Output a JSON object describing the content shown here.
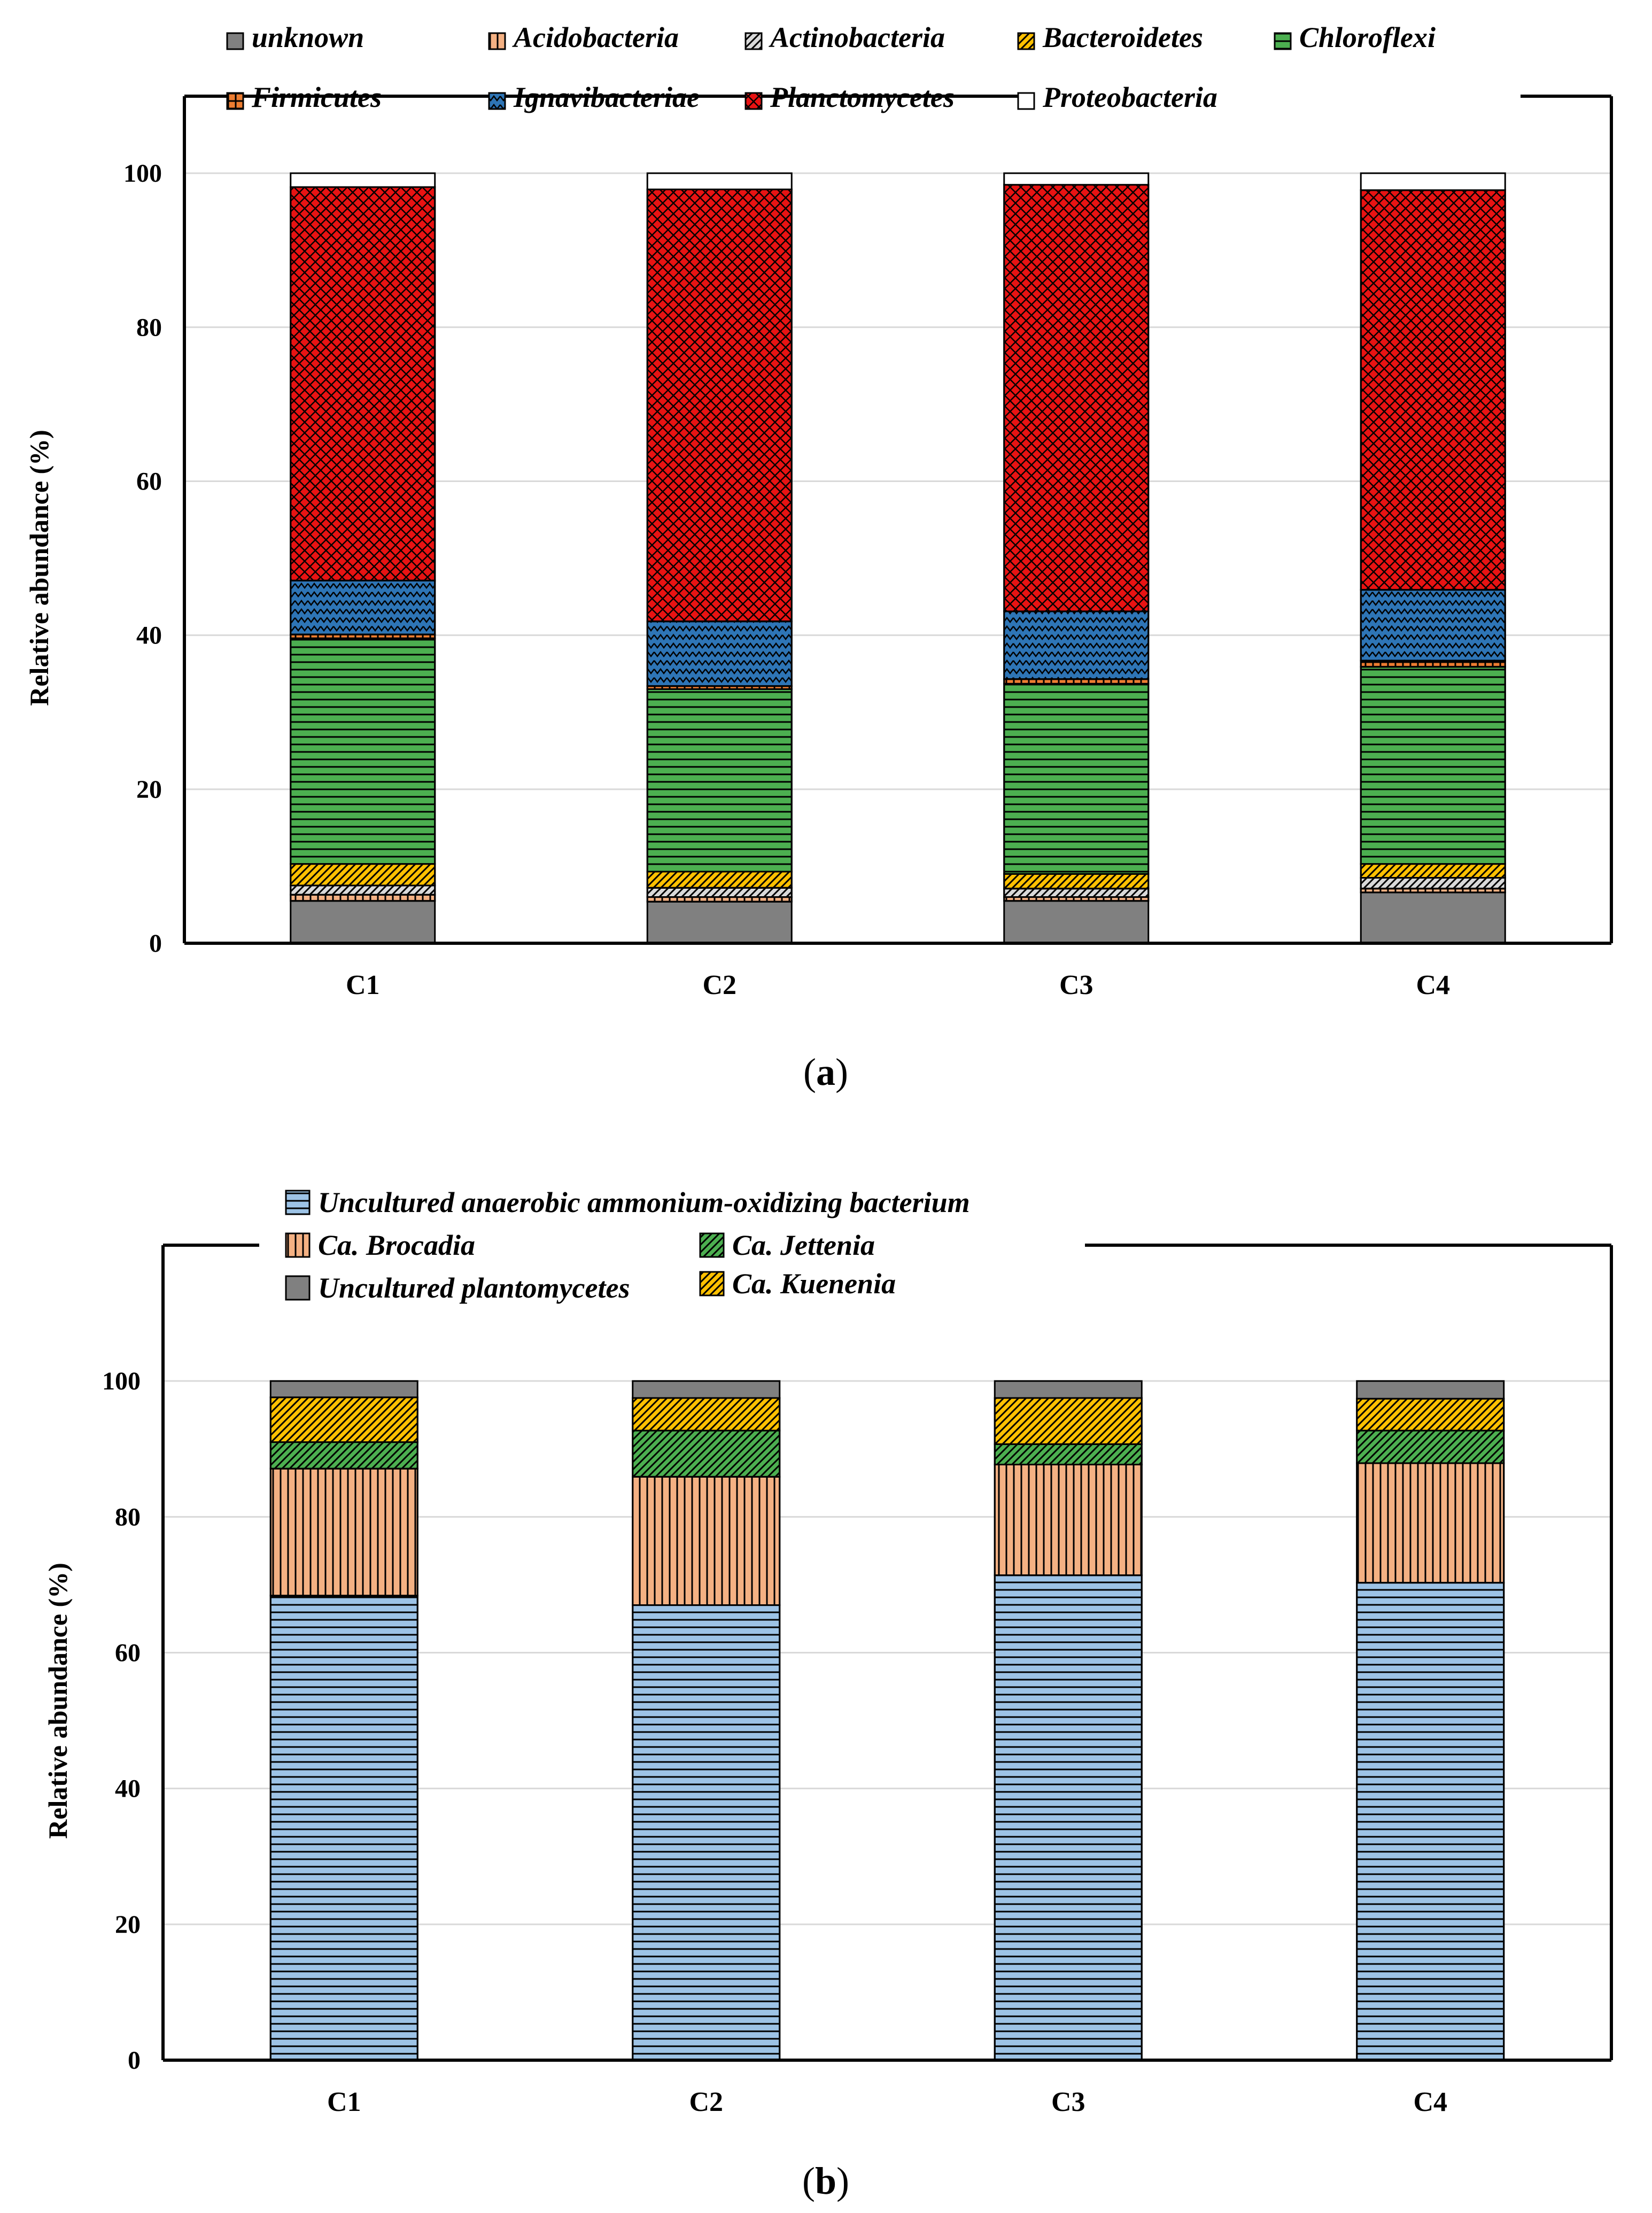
{
  "chart_data": [
    {
      "type": "bar",
      "stacked": true,
      "panel_label": "(a)",
      "panel_letter": "a",
      "ylabel": "Relative abundance (%)",
      "xlabel": "",
      "ylim": [
        0,
        110
      ],
      "yticks": [
        0,
        20,
        40,
        60,
        80,
        100
      ],
      "grid": true,
      "legend_position": "top",
      "categories": [
        "C1",
        "C2",
        "C3",
        "C4"
      ],
      "series": [
        {
          "name": "unknown",
          "color": "#808080",
          "pattern": "solid",
          "values": [
            5.5,
            5.4,
            5.5,
            6.6
          ]
        },
        {
          "name": "Acidobacteria",
          "color": "#F4B183",
          "pattern": "vertical",
          "values": [
            0.8,
            0.6,
            0.5,
            0.5
          ]
        },
        {
          "name": "Actinobacteria",
          "color": "#D9D9D9",
          "pattern": "diagonal",
          "values": [
            1.2,
            1.2,
            1.1,
            1.4
          ]
        },
        {
          "name": "Bacteroidetes",
          "color": "#FFC000",
          "pattern": "diagonal",
          "values": [
            2.8,
            2.1,
            1.9,
            1.8
          ]
        },
        {
          "name": "Chloroflexi",
          "color": "#4CAF50",
          "pattern": "horizontal",
          "values": [
            29.3,
            23.7,
            24.7,
            25.6
          ]
        },
        {
          "name": "Firmicutes",
          "color": "#ED7D31",
          "pattern": "grid",
          "values": [
            0.5,
            0.4,
            0.6,
            0.8
          ]
        },
        {
          "name": "Ignavibacteriae",
          "color": "#2E75B6",
          "pattern": "zigzag",
          "values": [
            7.0,
            8.4,
            8.8,
            9.2
          ]
        },
        {
          "name": "Planctomycetes",
          "color": "#E81313",
          "pattern": "brick",
          "values": [
            51.1,
            56.1,
            55.4,
            51.9
          ]
        },
        {
          "name": "Proteobacteria",
          "color": "#FFFFFF",
          "pattern": "solid",
          "values": [
            1.8,
            2.1,
            1.5,
            2.2
          ]
        }
      ]
    },
    {
      "type": "bar",
      "stacked": true,
      "panel_label": "(b)",
      "panel_letter": "b",
      "ylabel": "Relative abundance (%)",
      "xlabel": "",
      "ylim": [
        0,
        120
      ],
      "yticks": [
        0,
        20,
        40,
        60,
        80,
        100
      ],
      "grid": true,
      "legend_position": "top",
      "categories": [
        "C1",
        "C2",
        "C3",
        "C4"
      ],
      "series": [
        {
          "name": "Uncultured anaerobic ammonium-oxidizing bacterium",
          "color": "#9DC3E6",
          "pattern": "horizontal",
          "values": [
            68.4,
            67.0,
            71.4,
            70.3
          ]
        },
        {
          "name": "Ca. Brocadia",
          "color": "#F4B183",
          "pattern": "vertical",
          "values": [
            18.7,
            18.9,
            16.3,
            17.6
          ]
        },
        {
          "name": "Ca. Jettenia",
          "color": "#4CAF50",
          "pattern": "diagonal",
          "values": [
            3.9,
            6.8,
            3.0,
            4.8
          ]
        },
        {
          "name": "Ca. Kuenenia",
          "color": "#FFC000",
          "pattern": "diagonal",
          "values": [
            6.6,
            4.8,
            6.8,
            4.7
          ]
        },
        {
          "name": "Uncultured plantomycetes",
          "color": "#808080",
          "pattern": "solid",
          "values": [
            2.4,
            2.5,
            2.5,
            2.6
          ]
        }
      ]
    }
  ]
}
